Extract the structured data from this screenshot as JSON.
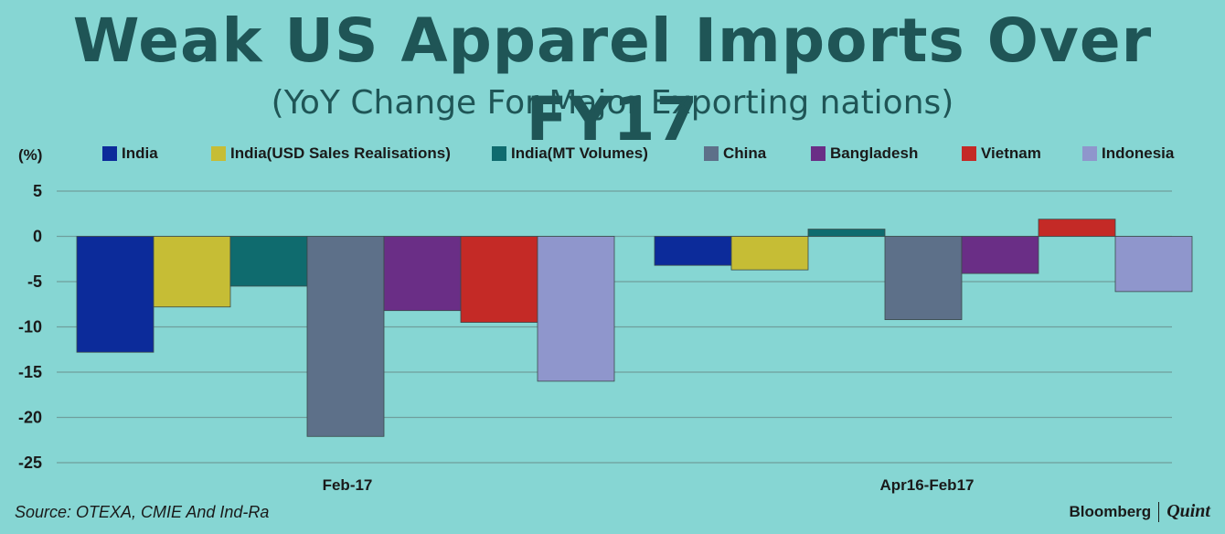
{
  "title": "Weak US Apparel Imports Over FY17",
  "subtitle": "(YoY Change For Major Exporting nations)",
  "unit_label": "(%)",
  "source": "Source: OTEXA, CMIE And Ind-Ra",
  "brand": {
    "name": "Bloomberg",
    "suffix": "Quint"
  },
  "chart_data": {
    "type": "bar",
    "categories": [
      "Feb-17",
      "Apr16-Feb17"
    ],
    "series": [
      {
        "name": "India",
        "color": "#0c2b9a",
        "values": [
          -12.8,
          -3.2
        ]
      },
      {
        "name": "India(USD Sales Realisations)",
        "color": "#c6bd35",
        "values": [
          -7.8,
          -3.7
        ]
      },
      {
        "name": "India(MT Volumes)",
        "color": "#0f6b6e",
        "values": [
          -5.5,
          0.8
        ]
      },
      {
        "name": "China",
        "color": "#5d7089",
        "values": [
          -22.1,
          -9.2
        ]
      },
      {
        "name": "Bangladesh",
        "color": "#6a2e86",
        "values": [
          -8.2,
          -4.1
        ]
      },
      {
        "name": "Vietnam",
        "color": "#c42a26",
        "values": [
          -9.5,
          1.9
        ]
      },
      {
        "name": "Indonesia",
        "color": "#8f96cc",
        "values": [
          -16.0,
          -6.1
        ]
      }
    ],
    "yticks": [
      5,
      0,
      -5,
      -10,
      -15,
      -20,
      -25
    ],
    "ylim": [
      -25,
      5
    ],
    "grid": true,
    "legend_position": "top"
  }
}
